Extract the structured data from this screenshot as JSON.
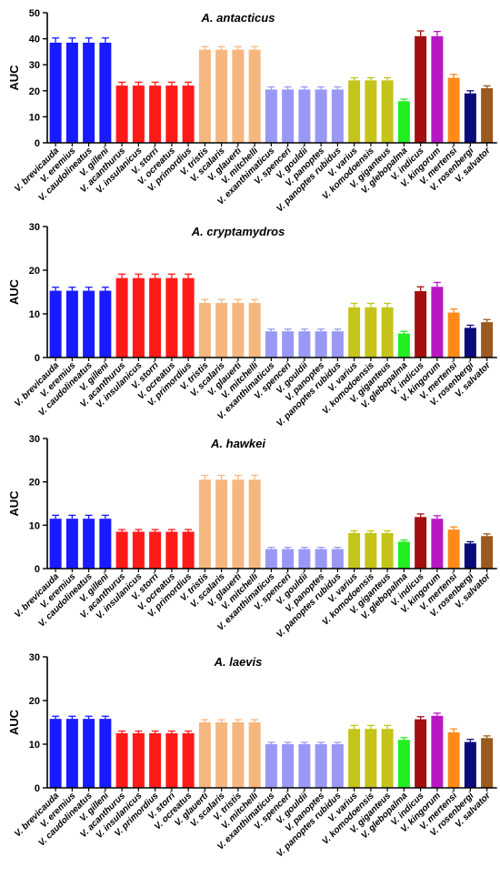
{
  "chart_data": [
    {
      "type": "bar",
      "title": "A. antacticus",
      "ylabel": "AUC",
      "ylim": [
        0,
        50
      ],
      "yticks": [
        0,
        10,
        20,
        30,
        40,
        50
      ],
      "categories": [
        "V. brevicauda",
        "V. eremius",
        "V. caudolineatus",
        "V. gilleni",
        "V. acanthurus",
        "V. insulanicus",
        "V. storri",
        "V. ocreatus",
        "V. primordius",
        "V. tristis",
        "V. scalaris",
        "V. glauerti",
        "V. mitchelli",
        "V. exanthimaticus",
        "V. spenceri",
        "V. gouldii",
        "V. panoptes",
        "V. panoptes rubidus",
        "V. varius",
        "V. komodoensis",
        "V. giganteus",
        "V. glebopalma",
        "V. indicus",
        "V. kingorum",
        "V. mertensi",
        "V. rosenbergi",
        "V. salvator"
      ],
      "values": [
        38.5,
        38.5,
        38.5,
        38.5,
        22,
        22,
        22,
        22,
        22,
        35.8,
        35.8,
        35.8,
        35.8,
        20.5,
        20.5,
        20.5,
        20.5,
        20.5,
        24,
        24,
        24,
        16,
        41,
        41,
        25,
        19,
        21
      ],
      "errors": [
        1.8,
        1.8,
        1.8,
        1.8,
        1.3,
        1.3,
        1.3,
        1.3,
        1.3,
        1.2,
        1.2,
        1.2,
        1.2,
        1,
        1,
        1,
        1,
        1,
        1,
        1,
        1,
        0.8,
        2,
        1.8,
        1.3,
        1,
        0.9
      ],
      "colors": [
        "#1a1aff",
        "#1a1aff",
        "#1a1aff",
        "#1a1aff",
        "#ff1a1a",
        "#ff1a1a",
        "#ff1a1a",
        "#ff1a1a",
        "#ff1a1a",
        "#f5b77f",
        "#f5b77f",
        "#f5b77f",
        "#f5b77f",
        "#9999f5",
        "#9999f5",
        "#9999f5",
        "#9999f5",
        "#9999f5",
        "#c4c41a",
        "#c4c41a",
        "#c4c41a",
        "#22ee22",
        "#a30f0f",
        "#b818c4",
        "#ff8a1a",
        "#0a0a7a",
        "#9a5a1e"
      ]
    },
    {
      "type": "bar",
      "title": "A. cryptamydros",
      "ylabel": "AUC",
      "ylim": [
        0,
        30
      ],
      "yticks": [
        0,
        10,
        20,
        30
      ],
      "categories": [
        "V. brevicauda",
        "V. eremius",
        "V. caudolineatus",
        "V. gilleni",
        "V. acanthurus",
        "V. insulanicus",
        "V. storri",
        "V. ocreatus",
        "V. primordius",
        "V. tristis",
        "V. scalaris",
        "V. glauerti",
        "V. mitchelli",
        "V. exanthimaticus",
        "V. spenceri",
        "V. gouldii",
        "V. panoptes",
        "V. panoptes rubidus",
        "V. varius",
        "V. komodoensis",
        "V. giganteus",
        "V. glebopalma",
        "V. indicus",
        "V. kingorum",
        "V. mertensi",
        "V. rosenbergi",
        "V. salvator"
      ],
      "values": [
        15.3,
        15.3,
        15.3,
        15.3,
        18.2,
        18.2,
        18.2,
        18.2,
        18.2,
        12.5,
        12.5,
        12.5,
        12.5,
        6,
        6,
        6,
        6,
        6,
        11.5,
        11.5,
        11.5,
        5.5,
        15.2,
        16.2,
        10.3,
        6.8,
        8.1
      ],
      "errors": [
        0.8,
        0.8,
        0.8,
        0.8,
        0.9,
        0.9,
        0.9,
        0.9,
        0.9,
        0.8,
        0.8,
        0.8,
        0.8,
        0.5,
        0.5,
        0.5,
        0.5,
        0.5,
        0.9,
        0.9,
        0.9,
        0.5,
        1,
        1,
        0.8,
        0.6,
        0.6
      ],
      "colors": [
        "#1a1aff",
        "#1a1aff",
        "#1a1aff",
        "#1a1aff",
        "#ff1a1a",
        "#ff1a1a",
        "#ff1a1a",
        "#ff1a1a",
        "#ff1a1a",
        "#f5b77f",
        "#f5b77f",
        "#f5b77f",
        "#f5b77f",
        "#9999f5",
        "#9999f5",
        "#9999f5",
        "#9999f5",
        "#9999f5",
        "#c4c41a",
        "#c4c41a",
        "#c4c41a",
        "#22ee22",
        "#a30f0f",
        "#b818c4",
        "#ff8a1a",
        "#0a0a7a",
        "#9a5a1e"
      ]
    },
    {
      "type": "bar",
      "title": "A. hawkei",
      "ylabel": "AUC",
      "ylim": [
        0,
        30
      ],
      "yticks": [
        0,
        10,
        20,
        30
      ],
      "categories": [
        "V. brevicauda",
        "V. eremius",
        "V. caudolineatus",
        "V. gilleni",
        "V. acanthurus",
        "V. insulanicus",
        "V. storri",
        "V. ocreatus",
        "V. primordius",
        "V. tristis",
        "V. scalaris",
        "V. glauerti",
        "V. mitchelli",
        "V. exanthimaticus",
        "V. spenceri",
        "V. gouldii",
        "V. panoptes",
        "V. panoptes rubidus",
        "V. varius",
        "V. komodoensis",
        "V. giganteus",
        "V. glebopalma",
        "V. indicus",
        "V. kingorum",
        "V. mertensi",
        "V. rosenbergi",
        "V. salvator"
      ],
      "values": [
        11.5,
        11.5,
        11.5,
        11.5,
        8.5,
        8.5,
        8.5,
        8.5,
        8.5,
        20.5,
        20.5,
        20.5,
        20.5,
        4.5,
        4.5,
        4.5,
        4.5,
        4.5,
        8.2,
        8.2,
        8.2,
        6.2,
        11.9,
        11.5,
        9,
        5.8,
        7.5
      ],
      "errors": [
        0.8,
        0.8,
        0.8,
        0.8,
        0.5,
        0.5,
        0.5,
        0.5,
        0.5,
        1,
        1,
        1,
        1,
        0.4,
        0.4,
        0.4,
        0.4,
        0.4,
        0.5,
        0.5,
        0.5,
        0.4,
        0.7,
        0.7,
        0.6,
        0.4,
        0.5
      ],
      "colors": [
        "#1a1aff",
        "#1a1aff",
        "#1a1aff",
        "#1a1aff",
        "#ff1a1a",
        "#ff1a1a",
        "#ff1a1a",
        "#ff1a1a",
        "#ff1a1a",
        "#f5b77f",
        "#f5b77f",
        "#f5b77f",
        "#f5b77f",
        "#9999f5",
        "#9999f5",
        "#9999f5",
        "#9999f5",
        "#9999f5",
        "#c4c41a",
        "#c4c41a",
        "#c4c41a",
        "#22ee22",
        "#a30f0f",
        "#b818c4",
        "#ff8a1a",
        "#0a0a7a",
        "#9a5a1e"
      ]
    },
    {
      "type": "bar",
      "title": "A. laevis",
      "ylabel": "AUC",
      "ylim": [
        0,
        30
      ],
      "yticks": [
        0,
        10,
        20,
        30
      ],
      "categories": [
        "V. brevicauda",
        "V. eremius",
        "V. caudolineatus",
        "V. gilleni",
        "V. acanthurus",
        "V. insulanicus",
        "V. primordius",
        "V. storri",
        "V. ocreatus",
        "V. glauerti",
        "V. scalaris",
        "V. tristis",
        "V. mitchelli",
        "V. exanthimaticus",
        "V. spenceri",
        "V. gouldii",
        "V. panoptes",
        "V. panoptes rubidus",
        "V. varius",
        "V. komodoensis",
        "V. giganteus",
        "V. glebopalma",
        "V. indicus",
        "V. kingorum",
        "V. mertensi",
        "V. rosenbergi",
        "V. salvator"
      ],
      "values": [
        15.8,
        15.8,
        15.8,
        15.8,
        12.5,
        12.5,
        12.5,
        12.5,
        12.5,
        15,
        15,
        15,
        15,
        10,
        10,
        10,
        10,
        10,
        13.5,
        13.5,
        13.5,
        11,
        15.7,
        16.5,
        12.7,
        10.5,
        11.4
      ],
      "errors": [
        0.6,
        0.6,
        0.6,
        0.6,
        0.5,
        0.5,
        0.5,
        0.5,
        0.5,
        0.6,
        0.6,
        0.6,
        0.6,
        0.4,
        0.4,
        0.4,
        0.4,
        0.4,
        0.8,
        0.8,
        0.8,
        0.5,
        0.6,
        0.6,
        0.8,
        0.6,
        0.5
      ],
      "colors": [
        "#1a1aff",
        "#1a1aff",
        "#1a1aff",
        "#1a1aff",
        "#ff1a1a",
        "#ff1a1a",
        "#ff1a1a",
        "#ff1a1a",
        "#ff1a1a",
        "#f5b77f",
        "#f5b77f",
        "#f5b77f",
        "#f5b77f",
        "#9999f5",
        "#9999f5",
        "#9999f5",
        "#9999f5",
        "#9999f5",
        "#c4c41a",
        "#c4c41a",
        "#c4c41a",
        "#22ee22",
        "#a30f0f",
        "#b818c4",
        "#ff8a1a",
        "#0a0a7a",
        "#9a5a1e"
      ]
    }
  ]
}
